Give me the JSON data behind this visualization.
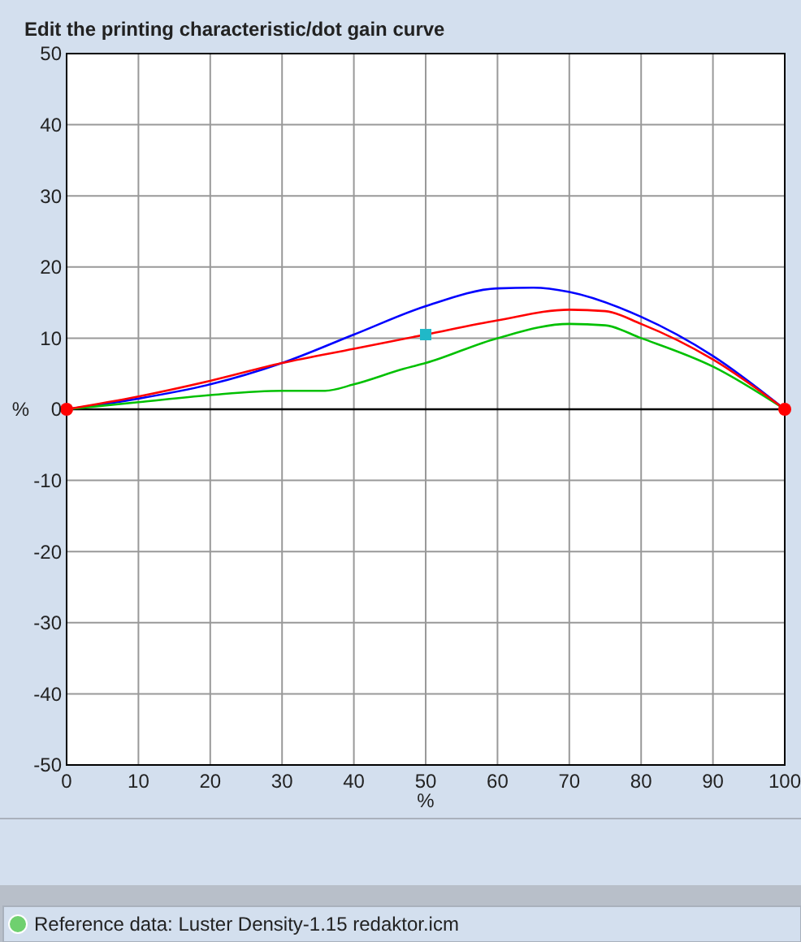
{
  "chart_data": {
    "type": "line",
    "title": "Edit the printing characteristic/dot gain curve",
    "xlabel": "%",
    "ylabel": "%",
    "xlim": [
      0,
      100
    ],
    "xticks": [
      0,
      10,
      20,
      30,
      40,
      50,
      60,
      70,
      80,
      90,
      100
    ],
    "ylim": [
      -50,
      50
    ],
    "yticks": [
      -50,
      -40,
      -30,
      -20,
      -10,
      0,
      10,
      20,
      30,
      40,
      50
    ],
    "grid": true,
    "marker": "none",
    "line_style": "solid",
    "series": [
      {
        "color": "#0000ff",
        "x": [
          0,
          10,
          20,
          30,
          40,
          50,
          60,
          65,
          70,
          80,
          90,
          100
        ],
        "values": [
          0,
          1.5,
          3.5,
          6.5,
          10.5,
          14.5,
          17,
          17.1,
          16.5,
          13,
          7.5,
          0
        ]
      },
      {
        "color": "#00c000",
        "x": [
          0,
          10,
          20,
          30,
          36,
          40,
          47,
          50,
          60,
          70,
          75,
          80,
          90,
          100
        ],
        "values": [
          0,
          1,
          2,
          2.6,
          2.6,
          3.5,
          5.7,
          6.5,
          10,
          12,
          11.8,
          10,
          6,
          0
        ]
      },
      {
        "color": "#ff0000",
        "x": [
          0,
          10,
          20,
          30,
          40,
          50,
          60,
          70,
          75,
          80,
          90,
          100
        ],
        "values": [
          0,
          1.8,
          4,
          6.5,
          8.5,
          10.5,
          12.5,
          14,
          13.8,
          12,
          7,
          0
        ]
      },
      {
        "type": "scatter",
        "marker": "circle",
        "color": "#ff0000",
        "x": [
          0,
          100
        ],
        "values": [
          0,
          0
        ]
      },
      {
        "type": "scatter",
        "marker": "square",
        "color": "#20b8c8",
        "x": [
          50
        ],
        "values": [
          10.5
        ]
      }
    ],
    "ref_lines": [
      {
        "axis": "y",
        "value": 0,
        "color": "#000000"
      }
    ],
    "annotations": [
      "Reference data: Luster Density-1.15 redaktor.icm"
    ]
  }
}
